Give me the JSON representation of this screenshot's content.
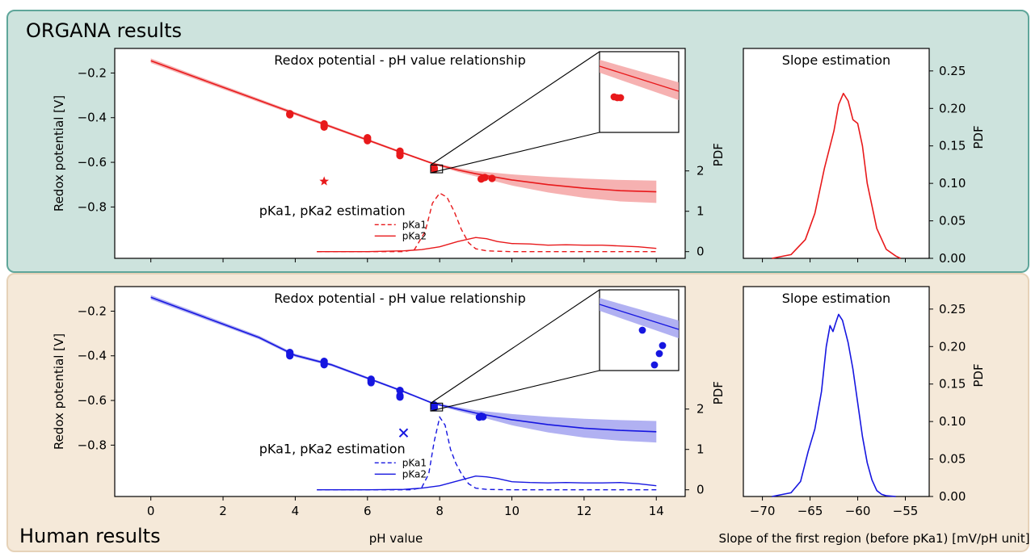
{
  "panels": {
    "top_label": "ORGANA results",
    "bottom_label": "Human results"
  },
  "colors": {
    "organa": "#e8191b",
    "human": "#1616e0",
    "organa_band": "#f4a3a3",
    "human_band": "#a3a3f0"
  },
  "chart_data": [
    {
      "type": "scatter",
      "group": "ORGANA results",
      "title": "Redox potential - pH value relationship",
      "xlabel": "pH value",
      "ylabel": "Redox potential [V]",
      "ylabel_right": "PDF",
      "xlim": [
        -1.0,
        14.8
      ],
      "ylim": [
        -1.03,
        -0.09
      ],
      "xticks": [
        "0",
        "2",
        "4",
        "6",
        "8",
        "10",
        "12",
        "14"
      ],
      "yticks": [
        "−0.2",
        "−0.4",
        "−0.6",
        "−0.8"
      ],
      "pdf_ticks": [
        "0",
        "1",
        "2"
      ],
      "fit_curve": {
        "x": [
          0,
          1,
          2,
          3,
          4,
          5,
          6,
          7,
          7.8,
          8.5,
          9,
          10,
          11,
          12,
          13,
          14
        ],
        "y": [
          -0.145,
          -0.205,
          -0.264,
          -0.323,
          -0.382,
          -0.441,
          -0.5,
          -0.559,
          -0.605,
          -0.634,
          -0.651,
          -0.679,
          -0.7,
          -0.716,
          -0.727,
          -0.732
        ]
      },
      "band_half_width": {
        "x": [
          0,
          7.8,
          9,
          10,
          11,
          12,
          13,
          14
        ],
        "w": [
          0.01,
          0.004,
          0.012,
          0.025,
          0.035,
          0.043,
          0.048,
          0.05
        ]
      },
      "points": {
        "x": [
          3.85,
          3.85,
          4.8,
          4.8,
          4.8,
          6.0,
          6.0,
          6.0,
          6.9,
          6.9,
          6.9,
          7.85,
          7.85,
          9.15,
          9.2,
          9.25,
          9.45
        ],
        "y": [
          -0.382,
          -0.387,
          -0.428,
          -0.435,
          -0.442,
          -0.49,
          -0.497,
          -0.503,
          -0.55,
          -0.56,
          -0.57,
          -0.625,
          -0.632,
          -0.675,
          -0.67,
          -0.668,
          -0.672
        ]
      },
      "outlier": {
        "marker": "star",
        "x": 4.8,
        "y": -0.685
      },
      "pdf_annotation": "pKa1, pKa2 estimation",
      "pdf_series": [
        {
          "name": "pKa1",
          "style": "dashed",
          "x": [
            4.6,
            7.0,
            7.3,
            7.6,
            7.8,
            8.0,
            8.2,
            8.4,
            8.6,
            8.8,
            9.0,
            9.3,
            9.6,
            10,
            11,
            12,
            13,
            14
          ],
          "y": [
            0,
            0,
            0.05,
            0.5,
            1.2,
            1.45,
            1.35,
            1.0,
            0.55,
            0.22,
            0.07,
            0.02,
            0.01,
            0,
            0,
            0,
            0,
            0
          ]
        },
        {
          "name": "pKa2",
          "style": "solid",
          "x": [
            4.6,
            6,
            7,
            7.5,
            8,
            8.5,
            9,
            9.3,
            9.6,
            10,
            10.5,
            11,
            11.5,
            12,
            12.5,
            13,
            13.5,
            14
          ],
          "y": [
            0,
            0,
            0.02,
            0.05,
            0.12,
            0.25,
            0.35,
            0.32,
            0.25,
            0.2,
            0.19,
            0.16,
            0.17,
            0.16,
            0.16,
            0.14,
            0.12,
            0.08
          ]
        }
      ],
      "inset": {
        "xlim": [
          7.7,
          8.0
        ],
        "ylim": [
          -0.65,
          -0.59
        ]
      }
    },
    {
      "type": "line",
      "group": "ORGANA results",
      "title": "Slope estimation",
      "ylabel": "PDF",
      "xlim": [
        -72,
        -52.5
      ],
      "ylim": [
        0,
        0.28
      ],
      "xticks": [
        "−70",
        "−65",
        "−60",
        "−55"
      ],
      "yticks": [
        "0.00",
        "0.05",
        "0.10",
        "0.15",
        "0.20",
        "0.25"
      ],
      "x": [
        -69,
        -67,
        -65.5,
        -64.5,
        -63.5,
        -62.5,
        -62,
        -61.5,
        -61,
        -60.5,
        -60,
        -59.5,
        -59,
        -58,
        -57,
        -56,
        -55.5
      ],
      "y": [
        0,
        0.005,
        0.025,
        0.06,
        0.12,
        0.17,
        0.205,
        0.22,
        0.21,
        0.185,
        0.18,
        0.15,
        0.1,
        0.04,
        0.012,
        0.003,
        0
      ]
    },
    {
      "type": "scatter",
      "group": "Human results",
      "title": "Redox potential - pH value relationship",
      "xlabel": "pH value",
      "ylabel": "Redox potential [V]",
      "ylabel_right": "PDF",
      "xlim": [
        -1.0,
        14.8
      ],
      "ylim": [
        -1.03,
        -0.09
      ],
      "xticks": [
        "0",
        "2",
        "4",
        "6",
        "8",
        "10",
        "12",
        "14"
      ],
      "yticks": [
        "−0.2",
        "−0.4",
        "−0.6",
        "−0.8"
      ],
      "pdf_ticks": [
        "0",
        "1",
        "2"
      ],
      "fit_curve": {
        "x": [
          0,
          1,
          2,
          3,
          4,
          5,
          6,
          7,
          7.8,
          8.5,
          9,
          10,
          11,
          12,
          13,
          14
        ],
        "y": [
          -0.138,
          -0.198,
          -0.258,
          -0.318,
          -0.398,
          -0.44,
          -0.5,
          -0.56,
          -0.612,
          -0.638,
          -0.656,
          -0.686,
          -0.708,
          -0.724,
          -0.734,
          -0.74
        ]
      },
      "band_half_width": {
        "x": [
          0,
          7.8,
          9,
          10,
          11,
          12,
          13,
          14
        ],
        "w": [
          0.01,
          0.004,
          0.012,
          0.025,
          0.035,
          0.042,
          0.046,
          0.048
        ]
      },
      "points": {
        "x": [
          3.85,
          3.85,
          3.85,
          4.8,
          4.8,
          4.8,
          6.1,
          6.1,
          6.1,
          6.9,
          6.9,
          6.9,
          7.85,
          7.85,
          9.1,
          9.15,
          9.2
        ],
        "y": [
          -0.385,
          -0.393,
          -0.4,
          -0.425,
          -0.433,
          -0.44,
          -0.505,
          -0.512,
          -0.52,
          -0.555,
          -0.578,
          -0.585,
          -0.62,
          -0.632,
          -0.675,
          -0.67,
          -0.673
        ]
      },
      "outlier": {
        "marker": "x",
        "x": 7.0,
        "y": -0.745
      },
      "pdf_annotation": "pKa1, pKa2 estimation",
      "pdf_series": [
        {
          "name": "pKa1",
          "style": "dashed",
          "x": [
            4.6,
            7.2,
            7.5,
            7.7,
            7.85,
            8.0,
            8.15,
            8.3,
            8.45,
            8.6,
            8.8,
            9.0,
            9.3,
            10,
            11,
            12,
            13,
            14
          ],
          "y": [
            0,
            0,
            0.05,
            0.4,
            1.2,
            1.8,
            1.6,
            1.0,
            0.65,
            0.4,
            0.15,
            0.04,
            0.01,
            0,
            0,
            0,
            0,
            0
          ]
        },
        {
          "name": "pKa2",
          "style": "solid",
          "x": [
            4.6,
            6,
            7,
            7.5,
            8,
            8.5,
            9,
            9.3,
            9.6,
            10,
            10.5,
            11,
            11.5,
            12,
            12.5,
            13,
            13.5,
            14
          ],
          "y": [
            0,
            0,
            0.01,
            0.04,
            0.1,
            0.22,
            0.34,
            0.32,
            0.28,
            0.2,
            0.18,
            0.17,
            0.18,
            0.17,
            0.17,
            0.18,
            0.15,
            0.1
          ]
        }
      ],
      "inset": {
        "xlim": [
          7.7,
          8.0
        ],
        "ylim": [
          -0.65,
          -0.59
        ]
      }
    },
    {
      "type": "line",
      "group": "Human results",
      "title": "Slope estimation",
      "ylabel": "PDF",
      "xlabel": "Slope of the first region (before pKa1) [mV/pH unit]",
      "xlim": [
        -72,
        -52.5
      ],
      "ylim": [
        0,
        0.28
      ],
      "xticks": [
        "−70",
        "−65",
        "−60",
        "−55"
      ],
      "yticks": [
        "0.00",
        "0.05",
        "0.10",
        "0.15",
        "0.20",
        "0.25"
      ],
      "x": [
        -69,
        -67,
        -66,
        -65.2,
        -64.5,
        -63.8,
        -63.3,
        -62.9,
        -62.6,
        -62.3,
        -62,
        -61.6,
        -61,
        -60.5,
        -60,
        -59.5,
        -59,
        -58.5,
        -58,
        -57.5,
        -57,
        -56
      ],
      "y": [
        0,
        0.005,
        0.02,
        0.06,
        0.09,
        0.14,
        0.2,
        0.228,
        0.22,
        0.232,
        0.243,
        0.235,
        0.205,
        0.17,
        0.125,
        0.08,
        0.045,
        0.022,
        0.008,
        0.003,
        0.001,
        0
      ]
    }
  ]
}
